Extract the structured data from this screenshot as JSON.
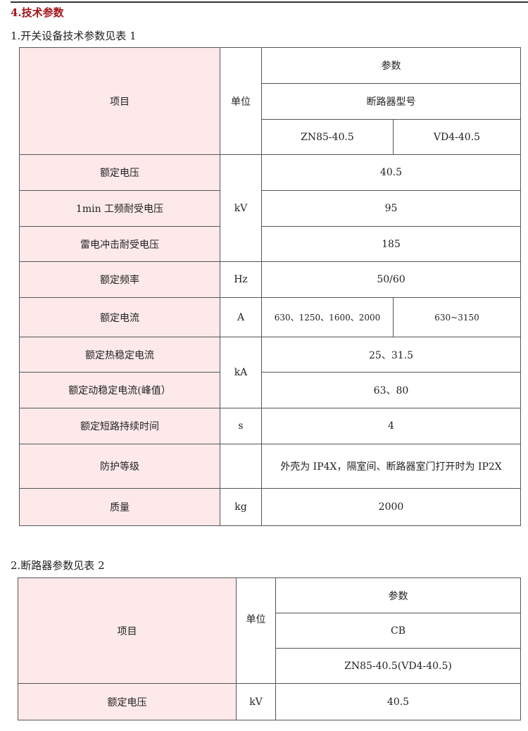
{
  "section_title": "4.技术参数",
  "table1": {
    "caption": "1.开关设备技术参数见表 1",
    "header": {
      "item": "项目",
      "unit": "单位",
      "params": "参数",
      "breaker_model": "断路器型号",
      "model_a": "ZN85-40.5",
      "model_b": "VD4-40.5"
    },
    "rows": [
      {
        "item": "额定电压",
        "unit": "kV",
        "value": "40.5"
      },
      {
        "item": "1min 工频耐受电压",
        "value": "95"
      },
      {
        "item": "雷电冲击耐受电压",
        "value": "185"
      },
      {
        "item": "额定频率",
        "unit": "Hz",
        "value": "50/60"
      },
      {
        "item": "额定电流",
        "unit": "A",
        "value_a": "630、1250、1600、2000",
        "value_b": "630~3150"
      },
      {
        "item": "额定热稳定电流",
        "unit": "kA",
        "value": "25、31.5"
      },
      {
        "item": "额定动稳定电流(峰值）",
        "value": "63、80"
      },
      {
        "item": "额定短路持续时间",
        "unit": "s",
        "value": "4"
      },
      {
        "item": "防护等级",
        "unit": "",
        "value": "外壳为 IP4X，隔室间、断路器室门打开时为 IP2X"
      },
      {
        "item": "质量",
        "unit": "kg",
        "value": "2000"
      }
    ]
  },
  "table2": {
    "caption": "2.断路器参数见表 2",
    "header": {
      "item": "项目",
      "unit": "单位",
      "params": "参数",
      "type": "CB",
      "model": "ZN85-40.5(VD4-40.5)"
    },
    "rows": [
      {
        "item": "额定电压",
        "unit": "kV",
        "value": "40.5"
      }
    ]
  },
  "colors": {
    "title": "#a3161a",
    "item_bg": "#fde9ea"
  }
}
